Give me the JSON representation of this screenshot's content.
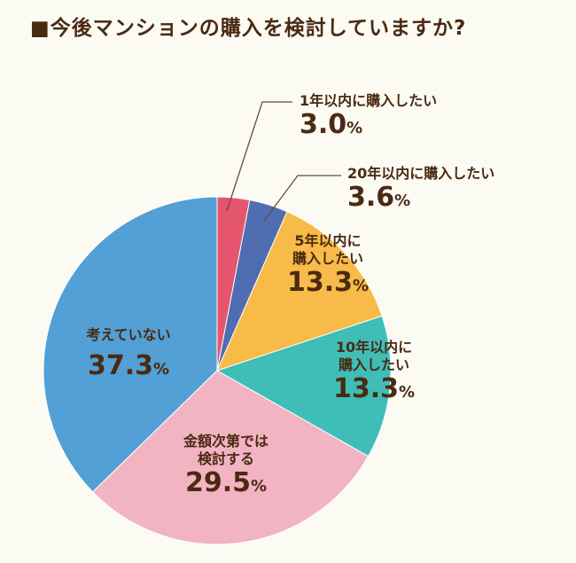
{
  "chart_data": {
    "type": "pie",
    "title": "■今後マンションの購入を検討していますか?",
    "unit": "%",
    "slices": [
      {
        "label": "1年以内に購入したい",
        "value": 3.0,
        "display": "3.0",
        "color": "#e5566e"
      },
      {
        "label": "20年以内に購入したい",
        "value": 3.6,
        "display": "3.6",
        "color": "#4f6db0"
      },
      {
        "label": "5年以内に購入したい",
        "value": 13.3,
        "display": "13.3",
        "color": "#f8ba48"
      },
      {
        "label": "10年以内に購入したい",
        "value": 13.3,
        "display": "13.3",
        "color": "#3fbdb7"
      },
      {
        "label": "金額次第では検討する",
        "value": 29.5,
        "display": "29.5",
        "color": "#f2b3c2"
      },
      {
        "label": "考えていない",
        "value": 37.3,
        "display": "37.3",
        "color": "#52a0d5"
      }
    ]
  }
}
